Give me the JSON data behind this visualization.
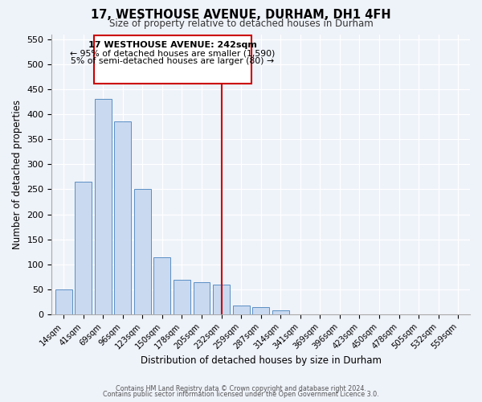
{
  "title": "17, WESTHOUSE AVENUE, DURHAM, DH1 4FH",
  "subtitle": "Size of property relative to detached houses in Durham",
  "xlabel": "Distribution of detached houses by size in Durham",
  "ylabel": "Number of detached properties",
  "categories": [
    "14sqm",
    "41sqm",
    "69sqm",
    "96sqm",
    "123sqm",
    "150sqm",
    "178sqm",
    "205sqm",
    "232sqm",
    "259sqm",
    "287sqm",
    "314sqm",
    "341sqm",
    "369sqm",
    "396sqm",
    "423sqm",
    "450sqm",
    "478sqm",
    "505sqm",
    "532sqm",
    "559sqm"
  ],
  "bar_heights": [
    50,
    265,
    430,
    385,
    250,
    115,
    70,
    65,
    60,
    18,
    15,
    8,
    0,
    0,
    0,
    0,
    0,
    0,
    0,
    0,
    0
  ],
  "bar_color": "#c9d9f0",
  "bar_edge_color": "#5a8fc4",
  "vline_bar_index": 8,
  "vline_color": "#cc0000",
  "annotation_text_line1": "17 WESTHOUSE AVENUE: 242sqm",
  "annotation_text_line2": "← 95% of detached houses are smaller (1,590)",
  "annotation_text_line3": "5% of semi-detached houses are larger (80) →",
  "annotation_box_color": "#cc0000",
  "annotation_text_color": "#000000",
  "background_color": "#eef2f9",
  "ylim": [
    0,
    560
  ],
  "yticks": [
    0,
    50,
    100,
    150,
    200,
    250,
    300,
    350,
    400,
    450,
    500,
    550
  ],
  "footer_line1": "Contains HM Land Registry data © Crown copyright and database right 2024.",
  "footer_line2": "Contains public sector information licensed under the Open Government Licence 3.0."
}
